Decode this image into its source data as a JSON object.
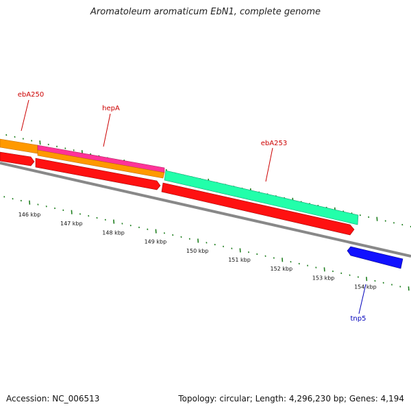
{
  "title": "Aromatoleum aromaticum EbN1, complete genome",
  "footer": {
    "accession": "Accession: NC_006513",
    "topology": "Topology: circular; Length: 4,296,230 bp; Genes: 4,194"
  },
  "colors": {
    "backbone": "#888888",
    "tick": "#1f7f1f",
    "label_red": "#cc0000",
    "label_blue": "#0000bb"
  },
  "kbp_labels": [
    "146 kbp",
    "147 kbp",
    "148 kbp",
    "149 kbp",
    "150 kbp",
    "151 kbp",
    "152 kbp",
    "153 kbp",
    "154 kbp"
  ],
  "features": [
    {
      "id": "f-orange",
      "color": "#ff9900"
    },
    {
      "id": "f-magenta",
      "color": "#ff3399"
    },
    {
      "id": "f-orange2",
      "color": "#ff9900"
    },
    {
      "id": "f-red1",
      "color": "#ff1111"
    },
    {
      "id": "f-red2",
      "color": "#ff1111"
    },
    {
      "id": "f-green",
      "color": "#22ffaa"
    },
    {
      "id": "f-red3",
      "color": "#ff1111"
    },
    {
      "id": "f-blue",
      "color": "#1111ff"
    }
  ],
  "gene_labels": {
    "ebA250": "ebA250",
    "hepA": "hepA",
    "ebA253": "ebA253",
    "tnp5": "tnp5"
  }
}
